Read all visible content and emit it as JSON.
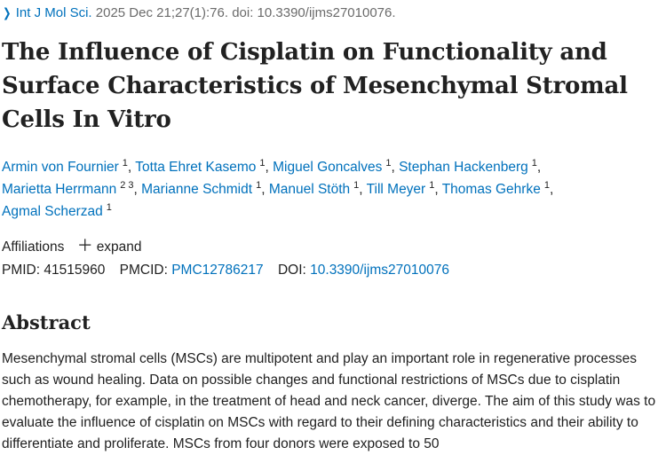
{
  "citation": {
    "chevron_icon": "chevron-right-icon",
    "journal": "Int J Mol Sci.",
    "details": "2025 Dec 21;27(1):76. doi: 10.3390/ijms27010076."
  },
  "title": "The Influence of Cisplatin on Functionality and Surface Characteristics of Mesenchymal Stromal Cells In Vitro",
  "authors": [
    {
      "name": "Armin von Fournier",
      "aff": "1"
    },
    {
      "name": "Totta Ehret Kasemo",
      "aff": "1"
    },
    {
      "name": "Miguel Goncalves",
      "aff": "1"
    },
    {
      "name": "Stephan Hackenberg",
      "aff": "1"
    },
    {
      "name": "Marietta Herrmann",
      "aff": "2 3"
    },
    {
      "name": "Marianne Schmidt",
      "aff": "1"
    },
    {
      "name": "Manuel Stöth",
      "aff": "1"
    },
    {
      "name": "Till Meyer",
      "aff": "1"
    },
    {
      "name": "Thomas Gehrke",
      "aff": "1"
    },
    {
      "name": "Agmal Scherzad",
      "aff": "1"
    }
  ],
  "affiliations": {
    "label": "Affiliations",
    "plus_icon": "plus-icon",
    "expand_label": "expand"
  },
  "ids": {
    "pmid_label": "PMID:",
    "pmid": "41515960",
    "pmcid_label": "PMCID:",
    "pmcid": "PMC12786217",
    "doi_label": "DOI:",
    "doi": "10.3390/ijms27010076"
  },
  "abstract": {
    "heading": "Abstract",
    "text": "Mesenchymal stromal cells (MSCs) are multipotent and play an important role in regenerative processes such as wound healing. Data on possible changes and functional restrictions of MSCs due to cisplatin chemotherapy, for example, in the treatment of head and neck cancer, diverge. The aim of this study was to evaluate the influence of cisplatin on MSCs with regard to their defining characteristics and their ability to differentiate and proliferate. MSCs from four donors were exposed to 50"
  },
  "colors": {
    "link": "#0071bc",
    "text": "#212121",
    "muted": "#6b6b6b"
  }
}
